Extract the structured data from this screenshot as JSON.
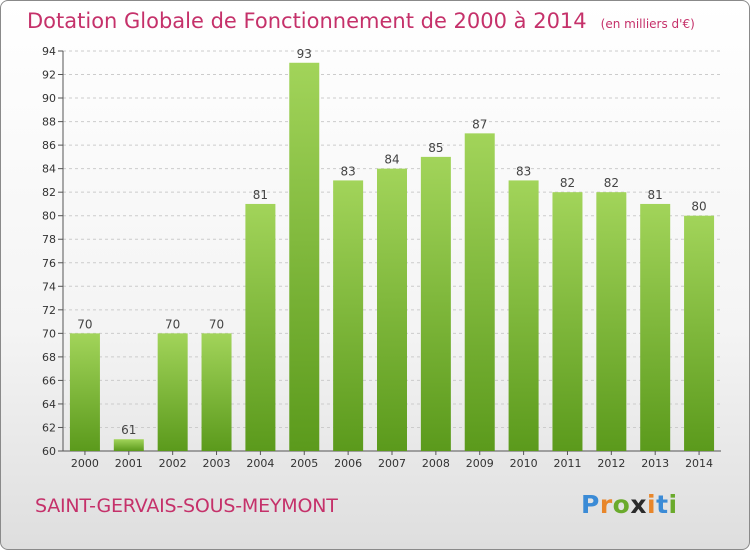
{
  "header": {
    "title": "Dotation Globale de Fonctionnement de 2000 à 2014",
    "unit": "(en milliers d'€)"
  },
  "footer": {
    "commune": "SAINT-GERVAIS-SOUS-MEYMONT",
    "logo": "Proxiti"
  },
  "colors": {
    "title": "#c5316a",
    "bar_top": "#a2d45a",
    "bar_bottom": "#5b9a1c",
    "grid": "#cccccc"
  },
  "chart_data": {
    "type": "bar",
    "categories": [
      "2000",
      "2001",
      "2002",
      "2003",
      "2004",
      "2005",
      "2006",
      "2007",
      "2008",
      "2009",
      "2010",
      "2011",
      "2012",
      "2013",
      "2014"
    ],
    "values": [
      70,
      61,
      70,
      70,
      81,
      93,
      83,
      84,
      85,
      87,
      83,
      82,
      82,
      81,
      80
    ],
    "ylim": [
      60,
      94
    ],
    "yticks": [
      60,
      62,
      64,
      66,
      68,
      70,
      72,
      74,
      76,
      78,
      80,
      82,
      84,
      86,
      88,
      90,
      92,
      94
    ],
    "grid": "horizontal dashed",
    "data_labels": true
  }
}
